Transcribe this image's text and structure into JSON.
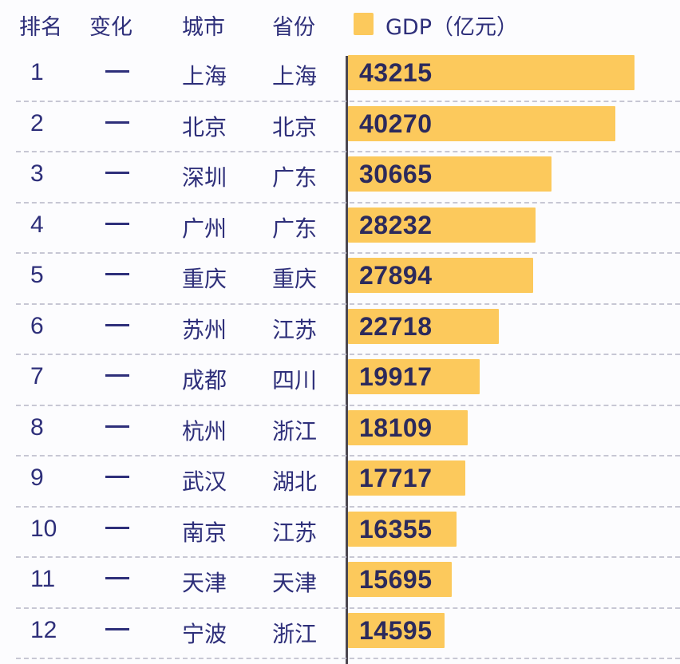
{
  "header": {
    "rank": "排名",
    "change": "变化",
    "city": "城市",
    "province": "省份",
    "gdp_legend": "GDP（亿元）"
  },
  "colors": {
    "bar": "#fcc95c",
    "text": "#2e2f7a",
    "axis": "#4b4750"
  },
  "rows": [
    {
      "rank": "1",
      "change": "—",
      "city": "上海",
      "province": "上海",
      "gdp": "43215"
    },
    {
      "rank": "2",
      "change": "—",
      "city": "北京",
      "province": "北京",
      "gdp": "40270"
    },
    {
      "rank": "3",
      "change": "—",
      "city": "深圳",
      "province": "广东",
      "gdp": "30665"
    },
    {
      "rank": "4",
      "change": "—",
      "city": "广州",
      "province": "广东",
      "gdp": "28232"
    },
    {
      "rank": "5",
      "change": "—",
      "city": "重庆",
      "province": "重庆",
      "gdp": "27894"
    },
    {
      "rank": "6",
      "change": "—",
      "city": "苏州",
      "province": "江苏",
      "gdp": "22718"
    },
    {
      "rank": "7",
      "change": "—",
      "city": "成都",
      "province": "四川",
      "gdp": "19917"
    },
    {
      "rank": "8",
      "change": "—",
      "city": "杭州",
      "province": "浙江",
      "gdp": "18109"
    },
    {
      "rank": "9",
      "change": "—",
      "city": "武汉",
      "province": "湖北",
      "gdp": "17717"
    },
    {
      "rank": "10",
      "change": "—",
      "city": "南京",
      "province": "江苏",
      "gdp": "16355"
    },
    {
      "rank": "11",
      "change": "—",
      "city": "天津",
      "province": "天津",
      "gdp": "15695"
    },
    {
      "rank": "12",
      "change": "—",
      "city": "宁波",
      "province": "浙江",
      "gdp": "14595"
    }
  ],
  "chart_data": {
    "type": "bar",
    "orientation": "horizontal",
    "title": "",
    "legend": [
      "GDP（亿元）"
    ],
    "columns": [
      "排名",
      "变化",
      "城市",
      "省份",
      "GDP（亿元）"
    ],
    "categories": [
      "上海",
      "北京",
      "深圳",
      "广州",
      "重庆",
      "苏州",
      "成都",
      "杭州",
      "武汉",
      "南京",
      "天津",
      "宁波"
    ],
    "provinces": [
      "上海",
      "北京",
      "广东",
      "广东",
      "重庆",
      "江苏",
      "四川",
      "浙江",
      "湖北",
      "江苏",
      "天津",
      "浙江"
    ],
    "ranks": [
      1,
      2,
      3,
      4,
      5,
      6,
      7,
      8,
      9,
      10,
      11,
      12
    ],
    "changes": [
      "—",
      "—",
      "—",
      "—",
      "—",
      "—",
      "—",
      "—",
      "—",
      "—",
      "—",
      "—"
    ],
    "values": [
      43215,
      40270,
      30665,
      28232,
      27894,
      22718,
      19917,
      18109,
      17717,
      16355,
      15695,
      14595
    ],
    "xlabel": "GDP（亿元）",
    "ylabel": "",
    "grid": "dashed row separators",
    "legend_position": "top"
  }
}
